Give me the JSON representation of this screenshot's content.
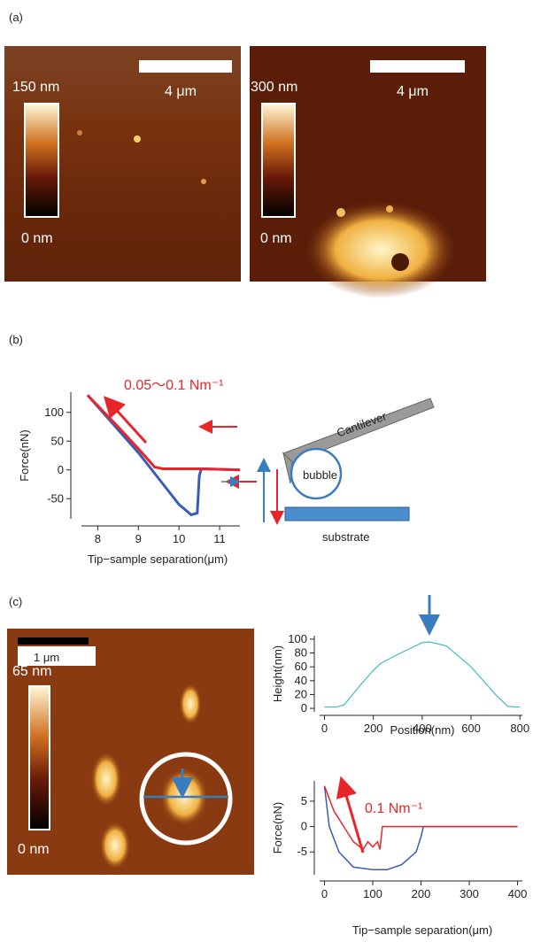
{
  "panel_labels": [
    "(a)",
    "(b)",
    "(c)"
  ],
  "images": [
    {
      "scale_bar": "4 μm",
      "colorbar_max": "150 nm",
      "colorbar_min": "0 nm"
    },
    {
      "scale_bar": "4 μm",
      "colorbar_max": "300 nm",
      "colorbar_min": "0 nm"
    },
    {
      "scale_bar": "1 μm",
      "colorbar_max": "65 nm",
      "colorbar_min": "0 nm"
    }
  ],
  "diagram": {
    "cantilever": "Cantilever",
    "bubble": "bubble",
    "substrate": "substrate"
  },
  "chart_data": [
    {
      "type": "line",
      "xlabel": "Tip−sample separation(μm)",
      "ylabel": "Force(nN)",
      "annotation": "0.05〜0.1 Nm⁻¹",
      "xlim": [
        7.6,
        11.5
      ],
      "ylim": [
        -85,
        135
      ],
      "xticks": [
        8,
        9,
        10,
        11
      ],
      "yticks": [
        -50,
        0,
        50,
        100
      ],
      "series": [
        {
          "color": "#3a5cb8",
          "x": [
            7.75,
            8.5,
            9.0,
            9.5,
            10.0,
            10.3,
            10.45,
            10.5,
            10.55,
            11.5
          ],
          "values": [
            130,
            70,
            30,
            -15,
            -60,
            -78,
            -75,
            -10,
            2,
            0
          ]
        },
        {
          "color": "#e8262a",
          "x": [
            7.75,
            8.5,
            9.0,
            9.4,
            9.6,
            10.5,
            11.5
          ],
          "values": [
            130,
            75,
            37,
            5,
            2,
            2,
            0
          ]
        }
      ]
    },
    {
      "type": "line",
      "xlabel": "Position(nm)",
      "ylabel": "Height(nm)",
      "xlim": [
        -20,
        810
      ],
      "ylim": [
        -5,
        105
      ],
      "xticks": [
        0,
        200,
        400,
        600,
        800
      ],
      "yticks": [
        0,
        20,
        40,
        60,
        80,
        100
      ],
      "series": [
        {
          "color": "#3fbfc0",
          "x": [
            0,
            50,
            80,
            150,
            200,
            230,
            300,
            400,
            430,
            500,
            600,
            700,
            750,
            780,
            800
          ],
          "values": [
            2,
            2,
            5,
            35,
            55,
            65,
            78,
            95,
            96,
            90,
            60,
            20,
            3,
            2,
            2
          ]
        }
      ]
    },
    {
      "type": "line",
      "xlabel": "Tip−sample separation(μm)",
      "ylabel": "Force(nN)",
      "annotation": "0.1 Nm⁻¹",
      "xlim": [
        -10,
        410
      ],
      "ylim": [
        -9.5,
        9
      ],
      "xticks": [
        0,
        100,
        200,
        300,
        400
      ],
      "yticks": [
        -5,
        0,
        5
      ],
      "series": [
        {
          "color": "#3a5cb8",
          "x": [
            0,
            10,
            30,
            60,
            100,
            130,
            160,
            190,
            200,
            205,
            400
          ],
          "values": [
            8,
            0,
            -5,
            -8,
            -8.5,
            -8.5,
            -7.5,
            -5,
            -2,
            0,
            0
          ]
        },
        {
          "color": "#e8262a",
          "x": [
            0,
            20,
            60,
            80,
            90,
            100,
            110,
            115,
            120,
            400
          ],
          "values": [
            8,
            3,
            -3,
            -4.5,
            -3,
            -4,
            -3,
            -4.5,
            0,
            0
          ]
        }
      ]
    }
  ]
}
